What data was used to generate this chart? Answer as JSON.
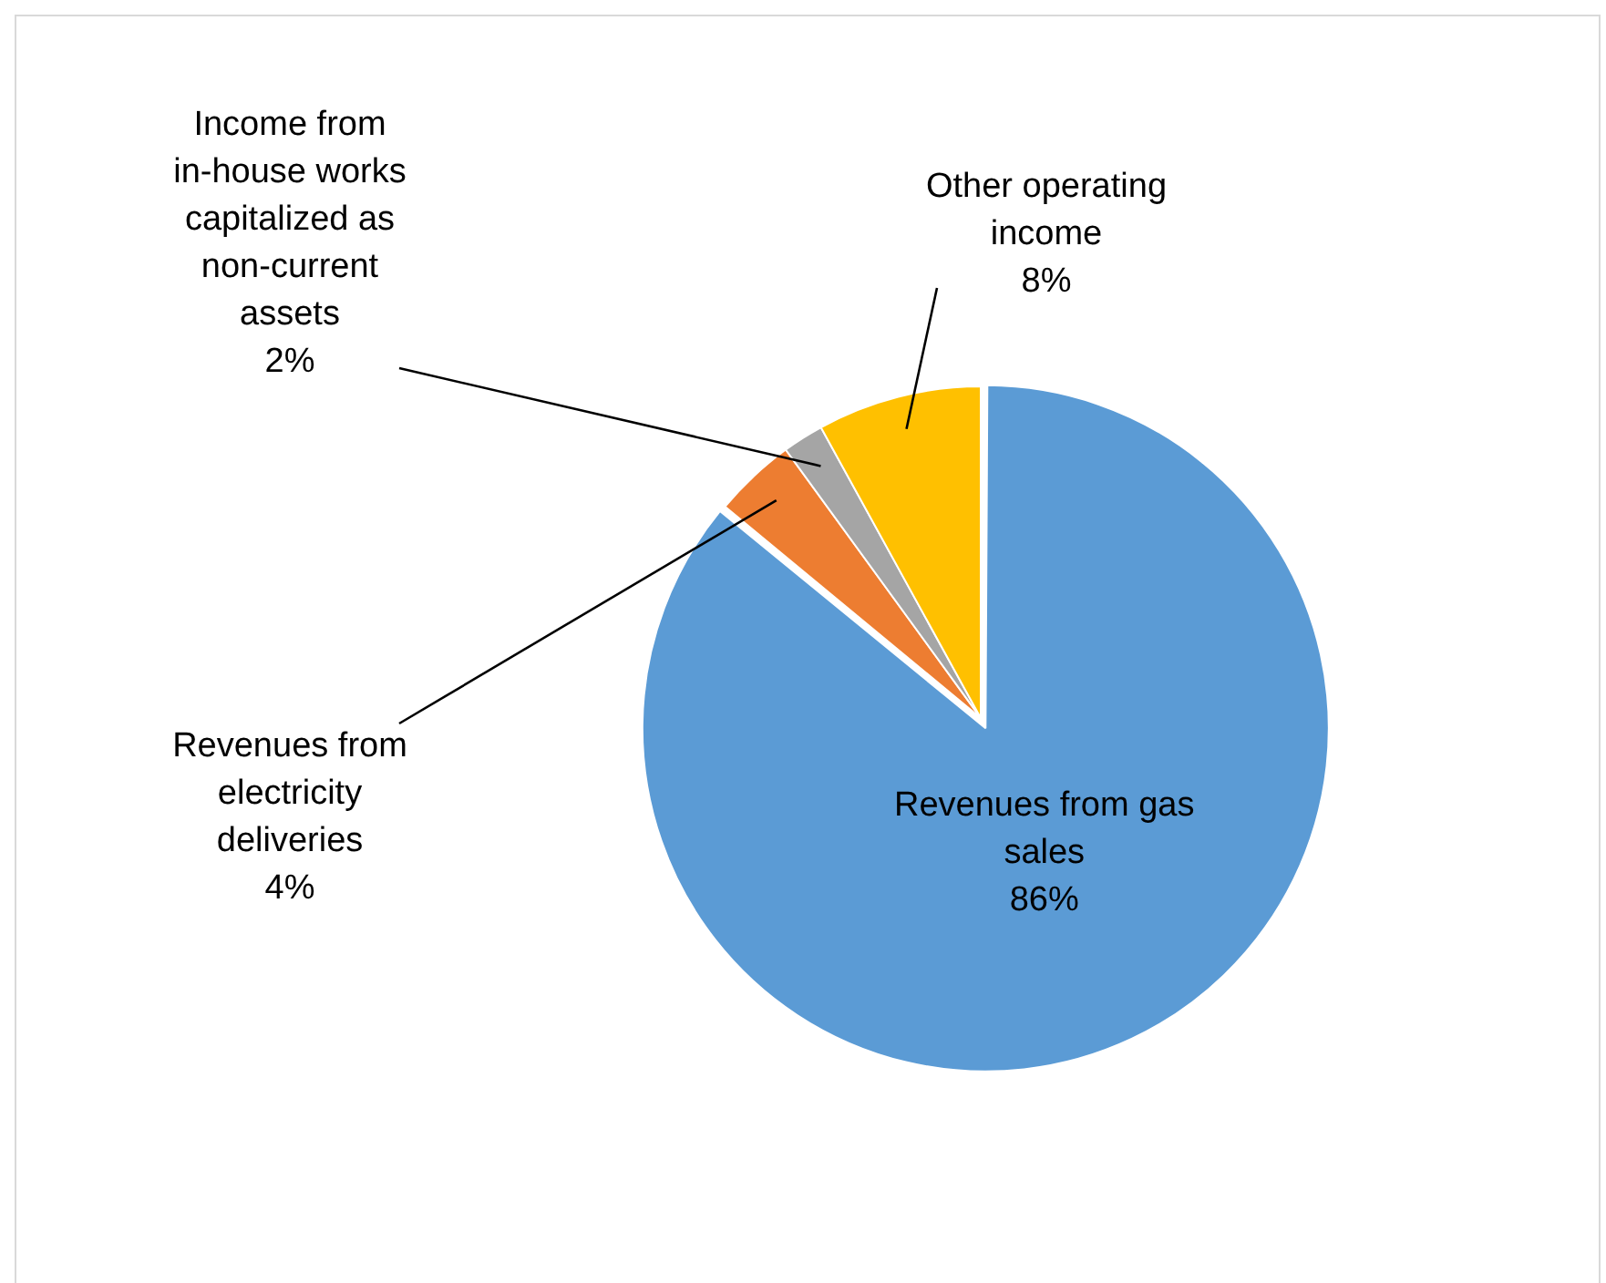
{
  "chart_data": {
    "type": "pie",
    "categories": [
      "Revenues from gas sales",
      "Revenues from electricity deliveries",
      "Income from in-house works capitalized as non-current assets",
      "Other operating income"
    ],
    "values": [
      86,
      4,
      2,
      8
    ],
    "colors": [
      "#5b9bd5",
      "#ed7d31",
      "#a5a5a5",
      "#ffc000"
    ],
    "value_labels": [
      "86%",
      "4%",
      "2%",
      "8%"
    ],
    "legend": false
  }
}
